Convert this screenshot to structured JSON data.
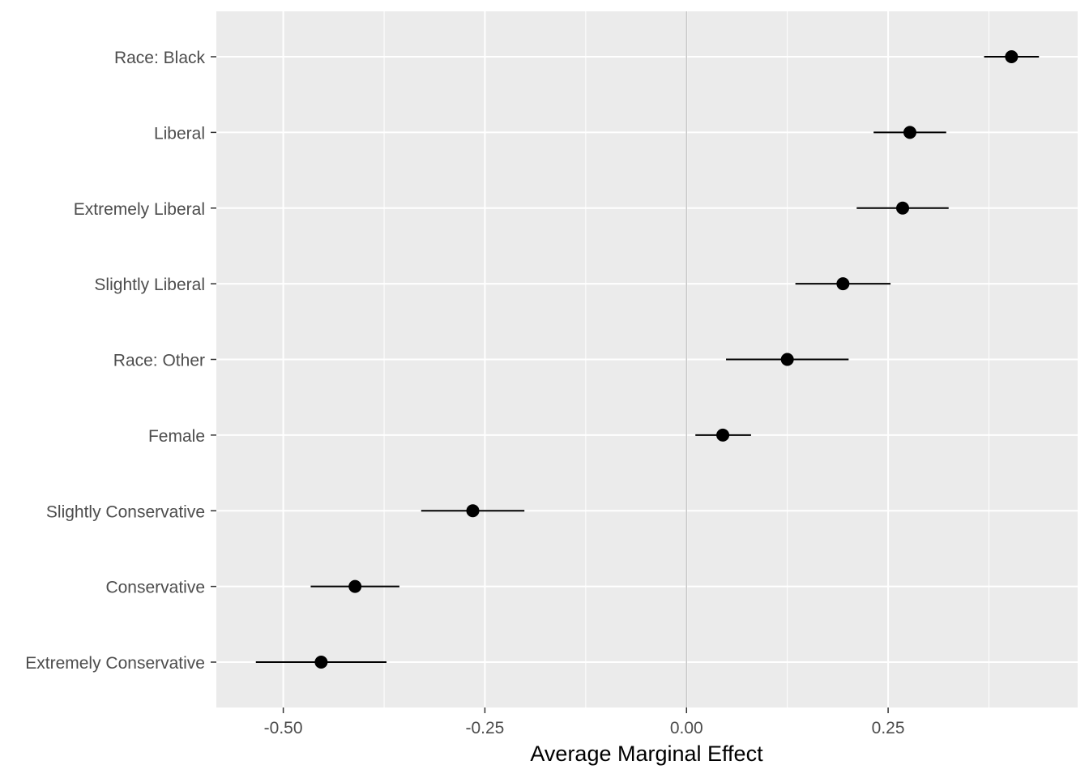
{
  "chart_data": {
    "type": "scatter",
    "subtype": "dot-and-whisker",
    "title": "",
    "xlabel": "Average Marginal Effect",
    "ylabel": "",
    "xlim": [
      -0.583,
      0.485
    ],
    "x_ticks": [
      -0.5,
      -0.25,
      0.0,
      0.25
    ],
    "x_tick_labels": [
      "-0.50",
      "-0.25",
      "0.00",
      "0.25"
    ],
    "reference_line": 0,
    "grid": true,
    "legend": "none",
    "categories": [
      "Race: Black",
      "Liberal",
      "Extremely Liberal",
      "Slightly Liberal",
      "Race: Other",
      "Female",
      "Slightly Conservative",
      "Conservative",
      "Extremely Conservative"
    ],
    "estimates": [
      0.403,
      0.277,
      0.268,
      0.194,
      0.125,
      0.045,
      -0.265,
      -0.411,
      -0.453
    ],
    "ci_low": [
      0.369,
      0.232,
      0.211,
      0.135,
      0.049,
      0.011,
      -0.329,
      -0.466,
      -0.534
    ],
    "ci_high": [
      0.437,
      0.322,
      0.325,
      0.253,
      0.201,
      0.08,
      -0.201,
      -0.356,
      -0.372
    ]
  },
  "colors": {
    "panel_background": "#ebebeb",
    "grid_major": "#ffffff",
    "reference_line": "#c8c8c8",
    "point": "#000000",
    "whisker": "#000000",
    "tick_label": "#4d4d4d",
    "axis_title": "#000000"
  }
}
